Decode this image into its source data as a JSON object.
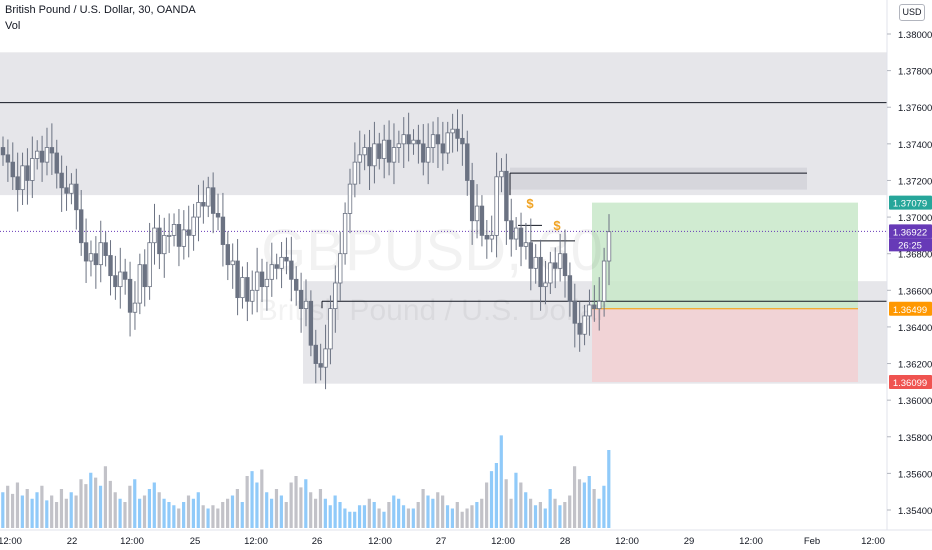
{
  "header": {
    "title": "British Pound / U.S. Dollar, 30, OANDA",
    "volume_label": "Vol"
  },
  "currency_button": "USD",
  "watermark": {
    "symbol": "GBPUSD, 30",
    "description": "British Pound / U.S. Dollar"
  },
  "colors": {
    "up": "#26a69a",
    "candle": "#6b7282",
    "volume_up": "#90caf9",
    "volume_down": "#c2c2c8",
    "zone": "#e6e6ea",
    "profit": "#c8e8c9",
    "loss": "#f2cfd2",
    "target_tag": "#26a69a",
    "stop_tag": "#ef5350",
    "entry_tag": "#ff9800",
    "price_tag": "#673ab7",
    "dollar": "#f0a323"
  },
  "chart_data": {
    "type": "candlestick",
    "y_axis": {
      "range": [
        1.3532,
        1.3812
      ],
      "ticks": [
        "1.38000",
        "1.37800",
        "1.37600",
        "1.37400",
        "1.37200",
        "1.37000",
        "1.36800",
        "1.36600",
        "1.36400",
        "1.36200",
        "1.36000",
        "1.35800",
        "1.35600",
        "1.35400"
      ]
    },
    "x_axis": {
      "ticks": [
        "12:00",
        "22",
        "12:00",
        "25",
        "12:00",
        "26",
        "12:00",
        "27",
        "12:00",
        "28",
        "12:00",
        "29",
        "12:00",
        "Feb",
        "12:00"
      ]
    },
    "price_tags": [
      {
        "name": "target",
        "value": "1.37079"
      },
      {
        "name": "current",
        "value": "1.36922",
        "countdown": "26:25"
      },
      {
        "name": "entry",
        "value": "1.36499"
      },
      {
        "name": "stop",
        "value": "1.36099"
      }
    ],
    "horizontal_levels": [
      1.37625,
      1.3724,
      1.3687,
      1.36955,
      1.3654
    ],
    "zones": [
      {
        "label": "upper-supply",
        "from": 1.3712,
        "to": 1.379
      },
      {
        "label": "lower-demand",
        "from": 1.3609,
        "to": 1.3665
      },
      {
        "label": "mini-zone",
        "from": 1.3715,
        "to": 1.3727
      }
    ],
    "position": {
      "type": "long",
      "entry": 1.36499,
      "target": 1.37079,
      "stop": 1.36099
    },
    "annotations": [
      "$",
      "$"
    ],
    "series": [
      {
        "name": "price",
        "values": [
          1.3734,
          1.373,
          1.3722,
          1.3715,
          1.3728,
          1.372,
          1.3732,
          1.3736,
          1.373,
          1.3738,
          1.3735,
          1.3724,
          1.3716,
          1.3713,
          1.3718,
          1.3704,
          1.3686,
          1.3676,
          1.368,
          1.3674,
          1.3686,
          1.3679,
          1.3668,
          1.3662,
          1.367,
          1.3666,
          1.3648,
          1.3653,
          1.3674,
          1.3662,
          1.3686,
          1.3694,
          1.368,
          1.369,
          1.369,
          1.3696,
          1.3684,
          1.3693,
          1.369,
          1.37,
          1.3708,
          1.3706,
          1.3716,
          1.3702,
          1.37,
          1.3685,
          1.3674,
          1.3676,
          1.3656,
          1.3667,
          1.3654,
          1.366,
          1.367,
          1.3662,
          1.3666,
          1.3674,
          1.3672,
          1.3678,
          1.3676,
          1.3666,
          1.366,
          1.365,
          1.3654,
          1.363,
          1.362,
          1.3618,
          1.3628,
          1.365,
          1.3664,
          1.368,
          1.3702,
          1.3718,
          1.373,
          1.3734,
          1.3738,
          1.3728,
          1.374,
          1.3732,
          1.3742,
          1.373,
          1.3738,
          1.374,
          1.3745,
          1.374,
          1.3742,
          1.374,
          1.373,
          1.3738,
          1.3745,
          1.374,
          1.3735,
          1.3746,
          1.3748,
          1.3743,
          1.374,
          1.372,
          1.3698,
          1.3706,
          1.369,
          1.3688,
          1.369,
          1.3722,
          1.3725,
          1.3698,
          1.3688,
          1.3694,
          1.3684,
          1.3686,
          1.3672,
          1.3678,
          1.3662,
          1.3664,
          1.3675,
          1.3672,
          1.368,
          1.3668,
          1.3654,
          1.3642,
          1.3636,
          1.3646,
          1.3652,
          1.365,
          1.3654,
          1.3676,
          1.3692
        ]
      }
    ],
    "volume": {
      "range": [
        0,
        80
      ],
      "values": [
        22,
        26,
        21,
        28,
        20,
        24,
        18,
        22,
        26,
        17,
        20,
        16,
        24,
        18,
        22,
        20,
        30,
        27,
        34,
        31,
        26,
        38,
        29,
        22,
        18,
        16,
        26,
        30,
        18,
        20,
        24,
        28,
        22,
        18,
        16,
        14,
        12,
        16,
        20,
        18,
        22,
        14,
        12,
        14,
        12,
        16,
        18,
        20,
        24,
        16,
        32,
        35,
        28,
        36,
        22,
        18,
        24,
        20,
        16,
        28,
        32,
        25,
        30,
        22,
        18,
        24,
        18,
        14,
        20,
        16,
        12,
        10,
        10,
        14,
        14,
        18,
        16,
        12,
        10,
        16,
        20,
        18,
        14,
        12,
        12,
        16,
        24,
        20,
        18,
        22,
        20,
        14,
        12,
        16,
        10,
        12,
        14,
        16,
        18,
        28,
        35,
        40,
        57,
        30,
        18,
        34,
        28,
        22,
        18,
        14,
        16,
        12,
        24,
        18,
        14,
        16,
        20,
        38,
        30,
        28,
        32,
        24,
        18,
        26,
        48
      ]
    }
  }
}
